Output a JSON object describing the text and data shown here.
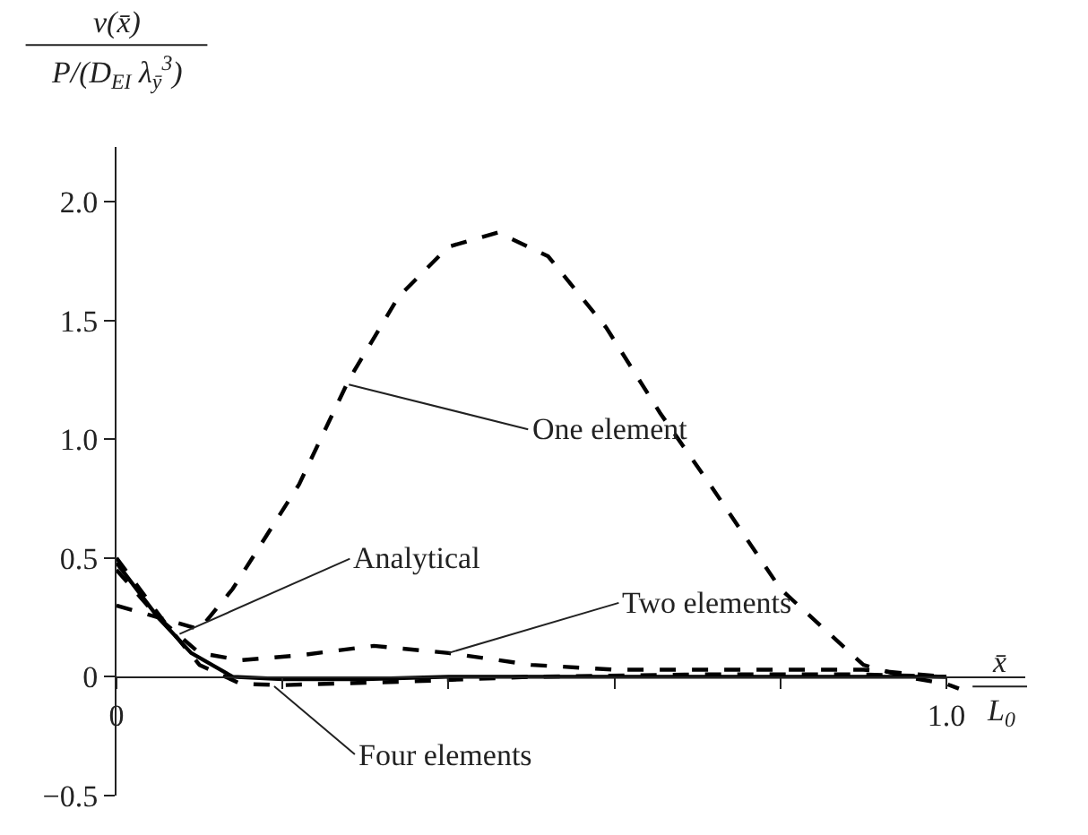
{
  "chart_data": {
    "type": "line",
    "xlabel": "x̄\nL$_{0}$",
    "ylabel": "v(x̄)\nP/(D$_{EI}$ λ$_{ȳ}$$^{3}$)",
    "xlim": [
      0,
      1.095
    ],
    "ylim": [
      -0.5,
      2.23
    ],
    "xticks": [
      {
        "value": 0,
        "label": "0"
      },
      {
        "value": 0.2,
        "label": null
      },
      {
        "value": 0.4,
        "label": null
      },
      {
        "value": 0.6,
        "label": null
      },
      {
        "value": 0.8,
        "label": null
      },
      {
        "value": 1.0,
        "label": "1.0"
      }
    ],
    "yticks": [
      {
        "value": -0.5,
        "label": "−0.5"
      },
      {
        "value": 0,
        "label": "0"
      },
      {
        "value": 0.5,
        "label": "0.5"
      },
      {
        "value": 1.0,
        "label": "1.0"
      },
      {
        "value": 1.5,
        "label": "1.5"
      },
      {
        "value": 2.0,
        "label": "2.0"
      }
    ],
    "marker": "none",
    "series": [
      {
        "x": [
          0,
          0.05,
          0.1,
          0.14,
          0.22,
          0.28,
          0.34,
          0.4,
          0.46,
          0.52,
          0.59,
          0.655,
          0.715,
          0.8,
          0.9,
          0.95,
          1.0,
          1.015
        ],
        "values": [
          0.3,
          0.25,
          0.2,
          0.37,
          0.81,
          1.25,
          1.6,
          1.81,
          1.87,
          1.77,
          1.47,
          1.11,
          0.81,
          0.37,
          0.05,
          0.0,
          -0.03,
          -0.05
        ],
        "color": "#000000",
        "line_style": "dashed"
      },
      {
        "x": [
          0,
          0.05,
          0.1,
          0.15,
          0.22,
          0.31,
          0.4,
          0.5,
          0.6,
          0.7,
          0.8,
          0.9,
          1.0
        ],
        "values": [
          0.45,
          0.25,
          0.1,
          0.07,
          0.09,
          0.13,
          0.1,
          0.05,
          0.03,
          0.03,
          0.03,
          0.03,
          0.0
        ],
        "color": "#000000",
        "line_style": "dashed"
      },
      {
        "x": [
          0,
          0.05,
          0.09,
          0.14,
          0.2,
          0.3,
          0.4,
          0.6,
          0.8,
          1.0
        ],
        "values": [
          0.48,
          0.25,
          0.1,
          0.0,
          -0.01,
          -0.01,
          0.0,
          0.0,
          0.0,
          0.0
        ],
        "color": "#000000",
        "line_style": "solid"
      },
      {
        "x": [
          0,
          0.06,
          0.1,
          0.15,
          0.2,
          0.35,
          0.5,
          0.7,
          0.9,
          1.0
        ],
        "values": [
          0.5,
          0.22,
          0.05,
          -0.03,
          -0.035,
          -0.02,
          0.0,
          0.01,
          0.01,
          0.0
        ],
        "color": "#000000",
        "line_style": "dashed"
      }
    ],
    "annotations": [
      {
        "text": "One element",
        "x": 0.28,
        "y": 1.23
      },
      {
        "text": "Analytical",
        "x": 0.076,
        "y": 0.18
      },
      {
        "text": "Two elements",
        "x": 0.4,
        "y": 0.1
      },
      {
        "text": "Four elements",
        "x": 0.19,
        "y": -0.04
      }
    ]
  }
}
